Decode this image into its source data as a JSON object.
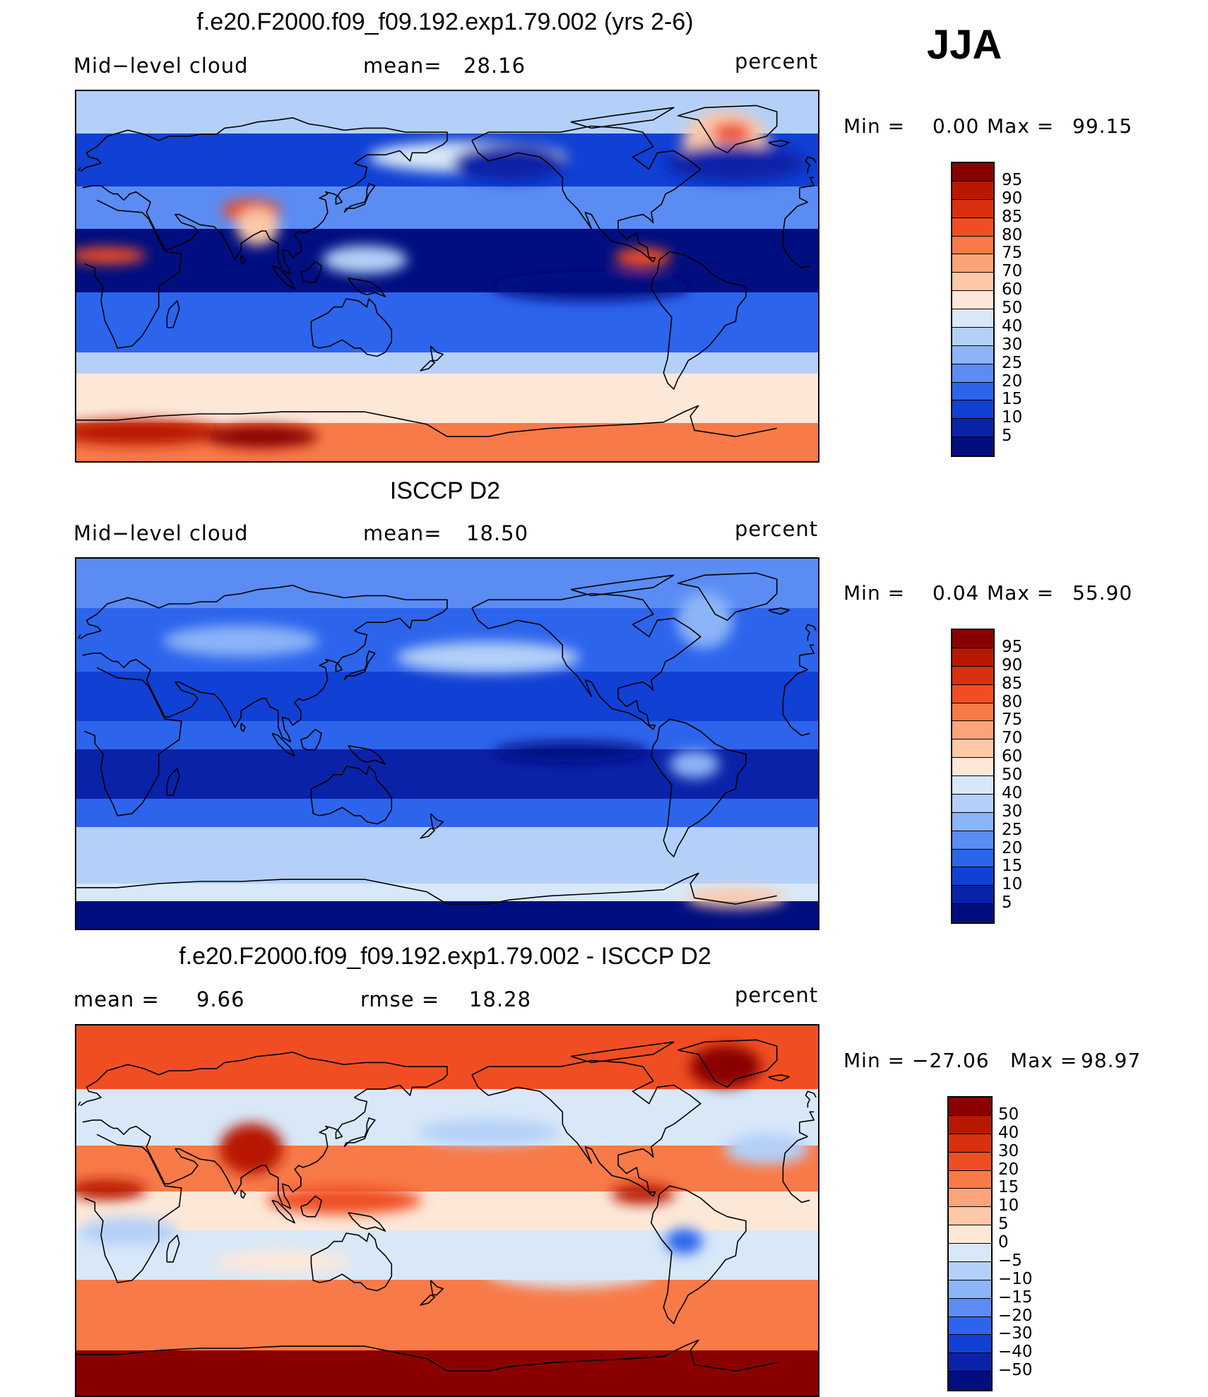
{
  "season": "JJA",
  "panels": [
    {
      "title": "f.e20.F2000.f09_f09.192.exp1.79.002 (yrs 2-6)",
      "left_label": "Mid−level cloud",
      "center_label": "mean=",
      "center_value": "28.16",
      "right_label": "percent",
      "min_label": "Min =",
      "min_value": "0.00",
      "max_label": "Max =",
      "max_value": "99.15",
      "colorbar": {
        "levels": [
          "95",
          "90",
          "85",
          "80",
          "75",
          "70",
          "60",
          "50",
          "40",
          "30",
          "25",
          "20",
          "15",
          "10",
          "5"
        ],
        "colors": [
          "#8a0000",
          "#b81800",
          "#d93010",
          "#f04e22",
          "#f87a48",
          "#fba47a",
          "#fdc8a8",
          "#fde8d8",
          "#d8e8f8",
          "#b4d0f8",
          "#8cb4f8",
          "#5a8cf4",
          "#2c64ec",
          "#1040d4",
          "#0a22a8",
          "#000e80"
        ]
      },
      "map_type": "model"
    },
    {
      "title": "ISCCP D2",
      "left_label": "Mid−level cloud",
      "center_label": "mean=",
      "center_value": "18.50",
      "right_label": "percent",
      "min_label": "Min =",
      "min_value": "0.04",
      "max_label": "Max =",
      "max_value": "55.90",
      "colorbar": {
        "levels": [
          "95",
          "90",
          "85",
          "80",
          "75",
          "70",
          "60",
          "50",
          "40",
          "30",
          "25",
          "20",
          "15",
          "10",
          "5"
        ],
        "colors": [
          "#8a0000",
          "#b81800",
          "#d93010",
          "#f04e22",
          "#f87a48",
          "#fba47a",
          "#fdc8a8",
          "#fde8d8",
          "#d8e8f8",
          "#b4d0f8",
          "#8cb4f8",
          "#5a8cf4",
          "#2c64ec",
          "#1040d4",
          "#0a22a8",
          "#000e80"
        ]
      },
      "map_type": "obs"
    },
    {
      "title": "f.e20.F2000.f09_f09.192.exp1.79.002 - ISCCP D2",
      "left_label": "mean =",
      "left_value": "9.66",
      "center_label": "rmse =",
      "center_value": "18.28",
      "right_label": "percent",
      "min_label": "Min =",
      "min_value": "−27.06",
      "max_label": "Max =",
      "max_value": "98.97",
      "colorbar": {
        "levels": [
          "50",
          "40",
          "30",
          "20",
          "15",
          "10",
          "5",
          "0",
          "−5",
          "−10",
          "−15",
          "−20",
          "−30",
          "−40",
          "−50"
        ],
        "colors": [
          "#8a0000",
          "#b81800",
          "#d93010",
          "#f04e22",
          "#f87a48",
          "#fba47a",
          "#fdc8a8",
          "#fde8d8",
          "#d8e8f8",
          "#b4d0f8",
          "#8cb4f8",
          "#5a8cf4",
          "#2c64ec",
          "#1040d4",
          "#0a22a8",
          "#000e80"
        ]
      },
      "map_type": "diff"
    }
  ]
}
